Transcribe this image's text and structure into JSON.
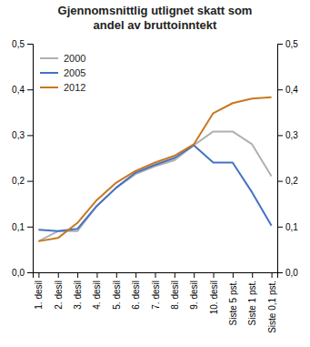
{
  "chart_data": {
    "type": "line",
    "title": "Gjennomsnittlig utlignet skatt som\nandel av bruttoinntekt",
    "categories": [
      "1. desil",
      "2. desil",
      "3. desil",
      "4. desil",
      "5. desil",
      "6. desil",
      "7. desil",
      "8. desil",
      "9. desil",
      "10. desil",
      "Siste 5 pst.",
      "Siste 1 pst.",
      "Siste 0,1 pst."
    ],
    "series": [
      {
        "name": "2000",
        "color": "#b0b0b0",
        "values": [
          0.068,
          0.09,
          0.09,
          0.145,
          0.185,
          0.215,
          0.232,
          0.245,
          0.278,
          0.308,
          0.308,
          0.28,
          0.21
        ]
      },
      {
        "name": "2005",
        "color": "#4472c4",
        "values": [
          0.093,
          0.09,
          0.095,
          0.145,
          0.185,
          0.218,
          0.235,
          0.25,
          0.278,
          0.24,
          0.24,
          0.175,
          0.102
        ]
      },
      {
        "name": "2012",
        "color": "#c87820",
        "values": [
          0.068,
          0.075,
          0.108,
          0.158,
          0.196,
          0.222,
          0.24,
          0.255,
          0.28,
          0.348,
          0.37,
          0.38,
          0.383
        ]
      }
    ],
    "ylim": [
      0.0,
      0.5
    ],
    "yticks": [
      {
        "value": 0.0,
        "label": "0,0"
      },
      {
        "value": 0.1,
        "label": "0,1"
      },
      {
        "value": 0.2,
        "label": "0,2"
      },
      {
        "value": 0.3,
        "label": "0,3"
      },
      {
        "value": 0.4,
        "label": "0,4"
      },
      {
        "value": 0.5,
        "label": "0,5"
      }
    ],
    "y2lim": [
      0.0,
      0.5
    ],
    "y2ticks": [
      {
        "value": 0.0,
        "label": "0,0"
      },
      {
        "value": 0.1,
        "label": "0,1"
      },
      {
        "value": 0.2,
        "label": "0,2"
      },
      {
        "value": 0.3,
        "label": "0,3"
      },
      {
        "value": 0.4,
        "label": "0,4"
      },
      {
        "value": 0.5,
        "label": "0,5"
      }
    ],
    "legend": "upper left",
    "grid": false
  }
}
